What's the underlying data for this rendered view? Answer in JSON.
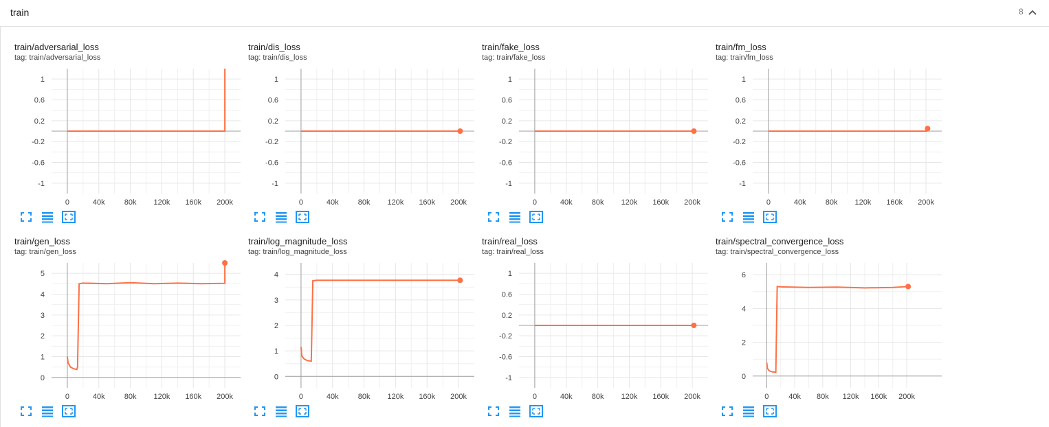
{
  "header": {
    "title": "train",
    "count": "8"
  },
  "colors": {
    "line": "#ff7043",
    "grid": "#e6e6e6",
    "axis": "#9e9e9e",
    "icon": "#2196f3"
  },
  "icons": {
    "collapse": "chevron-up-icon",
    "fullscreen": "fullscreen-icon",
    "data_table": "data-table-icon",
    "fit_domain": "fit-domain-icon"
  },
  "cards": [
    {
      "title": "train/adversarial_loss",
      "tag": "tag: train/adversarial_loss"
    },
    {
      "title": "train/dis_loss",
      "tag": "tag: train/dis_loss"
    },
    {
      "title": "train/fake_loss",
      "tag": "tag: train/fake_loss"
    },
    {
      "title": "train/fm_loss",
      "tag": "tag: train/fm_loss"
    },
    {
      "title": "train/gen_loss",
      "tag": "tag: train/gen_loss"
    },
    {
      "title": "train/log_magnitude_loss",
      "tag": "tag: train/log_magnitude_loss"
    },
    {
      "title": "train/real_loss",
      "tag": "tag: train/real_loss"
    },
    {
      "title": "train/spectral_convergence_loss",
      "tag": "tag: train/spectral_convergence_loss"
    }
  ],
  "chart_data": [
    {
      "type": "line",
      "title": "train/adversarial_loss",
      "x_ticks": [
        "0",
        "40k",
        "80k",
        "120k",
        "160k",
        "200k"
      ],
      "y_ticks": [
        "1",
        "0.6",
        "0.2",
        "-0.2",
        "-0.6",
        "-1"
      ],
      "xlim": [
        -20000,
        220000
      ],
      "ylim": [
        -1.2,
        1.2
      ],
      "series": [
        {
          "x": [
            0,
            200000,
            200000
          ],
          "y": [
            0,
            0,
            1.25
          ]
        }
      ]
    },
    {
      "type": "line",
      "title": "train/dis_loss",
      "x_ticks": [
        "0",
        "40k",
        "80k",
        "120k",
        "160k",
        "200k"
      ],
      "y_ticks": [
        "1",
        "0.6",
        "0.2",
        "-0.2",
        "-0.6",
        "-1"
      ],
      "xlim": [
        -20000,
        220000
      ],
      "ylim": [
        -1.2,
        1.2
      ],
      "series": [
        {
          "x": [
            0,
            202000
          ],
          "y": [
            0,
            0
          ]
        }
      ]
    },
    {
      "type": "line",
      "title": "train/fake_loss",
      "x_ticks": [
        "0",
        "40k",
        "80k",
        "120k",
        "160k",
        "200k"
      ],
      "y_ticks": [
        "1",
        "0.6",
        "0.2",
        "-0.2",
        "-0.6",
        "-1"
      ],
      "xlim": [
        -20000,
        220000
      ],
      "ylim": [
        -1.2,
        1.2
      ],
      "series": [
        {
          "x": [
            0,
            202000
          ],
          "y": [
            0,
            0
          ]
        }
      ]
    },
    {
      "type": "line",
      "title": "train/fm_loss",
      "x_ticks": [
        "0",
        "40k",
        "80k",
        "120k",
        "160k",
        "200k"
      ],
      "y_ticks": [
        "1",
        "0.6",
        "0.2",
        "-0.2",
        "-0.6",
        "-1"
      ],
      "xlim": [
        -20000,
        220000
      ],
      "ylim": [
        -1.2,
        1.2
      ],
      "series": [
        {
          "x": [
            0,
            201000,
            202000
          ],
          "y": [
            0,
            0,
            0.05
          ]
        }
      ]
    },
    {
      "type": "line",
      "title": "train/gen_loss",
      "x_ticks": [
        "0",
        "40k",
        "80k",
        "120k",
        "160k",
        "200k"
      ],
      "y_ticks": [
        "5",
        "4",
        "3",
        "2",
        "1",
        "0"
      ],
      "xlim": [
        -20000,
        220000
      ],
      "ylim": [
        -0.5,
        5.5
      ],
      "series": [
        {
          "x": [
            0,
            1000,
            4000,
            8000,
            12000,
            13000,
            15000,
            20000,
            50000,
            80000,
            110000,
            140000,
            170000,
            200000,
            200000
          ],
          "y": [
            1.0,
            0.7,
            0.5,
            0.42,
            0.38,
            0.5,
            4.5,
            4.53,
            4.5,
            4.55,
            4.5,
            4.53,
            4.5,
            4.52,
            5.5
          ]
        }
      ]
    },
    {
      "type": "line",
      "title": "train/log_magnitude_loss",
      "x_ticks": [
        "0",
        "40k",
        "80k",
        "120k",
        "160k",
        "200k"
      ],
      "y_ticks": [
        "4",
        "3",
        "2",
        "1",
        "0"
      ],
      "xlim": [
        -20000,
        220000
      ],
      "ylim": [
        -0.45,
        4.45
      ],
      "series": [
        {
          "x": [
            0,
            1000,
            4000,
            8000,
            13000,
            15000,
            20000,
            60000,
            100000,
            140000,
            180000,
            202000
          ],
          "y": [
            1.15,
            0.8,
            0.68,
            0.62,
            0.6,
            3.75,
            3.77,
            3.77,
            3.77,
            3.77,
            3.77,
            3.77
          ]
        }
      ]
    },
    {
      "type": "line",
      "title": "train/real_loss",
      "x_ticks": [
        "0",
        "40k",
        "80k",
        "120k",
        "160k",
        "200k"
      ],
      "y_ticks": [
        "1",
        "0.6",
        "0.2",
        "-0.2",
        "-0.6",
        "-1"
      ],
      "xlim": [
        -20000,
        220000
      ],
      "ylim": [
        -1.2,
        1.2
      ],
      "series": [
        {
          "x": [
            0,
            202000
          ],
          "y": [
            0,
            0
          ]
        }
      ]
    },
    {
      "type": "line",
      "title": "train/spectral_convergence_loss",
      "x_ticks": [
        "0",
        "40k",
        "80k",
        "120k",
        "160k",
        "200k"
      ],
      "y_ticks": [
        "6",
        "4",
        "2",
        "0"
      ],
      "xlim": [
        -20000,
        250000
      ],
      "ylim": [
        -0.7,
        6.7
      ],
      "series": [
        {
          "x": [
            0,
            1000,
            4000,
            8000,
            13000,
            15000,
            20000,
            60000,
            100000,
            140000,
            180000,
            202000
          ],
          "y": [
            0.8,
            0.45,
            0.3,
            0.25,
            0.22,
            5.3,
            5.28,
            5.25,
            5.27,
            5.22,
            5.25,
            5.3
          ]
        }
      ]
    }
  ]
}
